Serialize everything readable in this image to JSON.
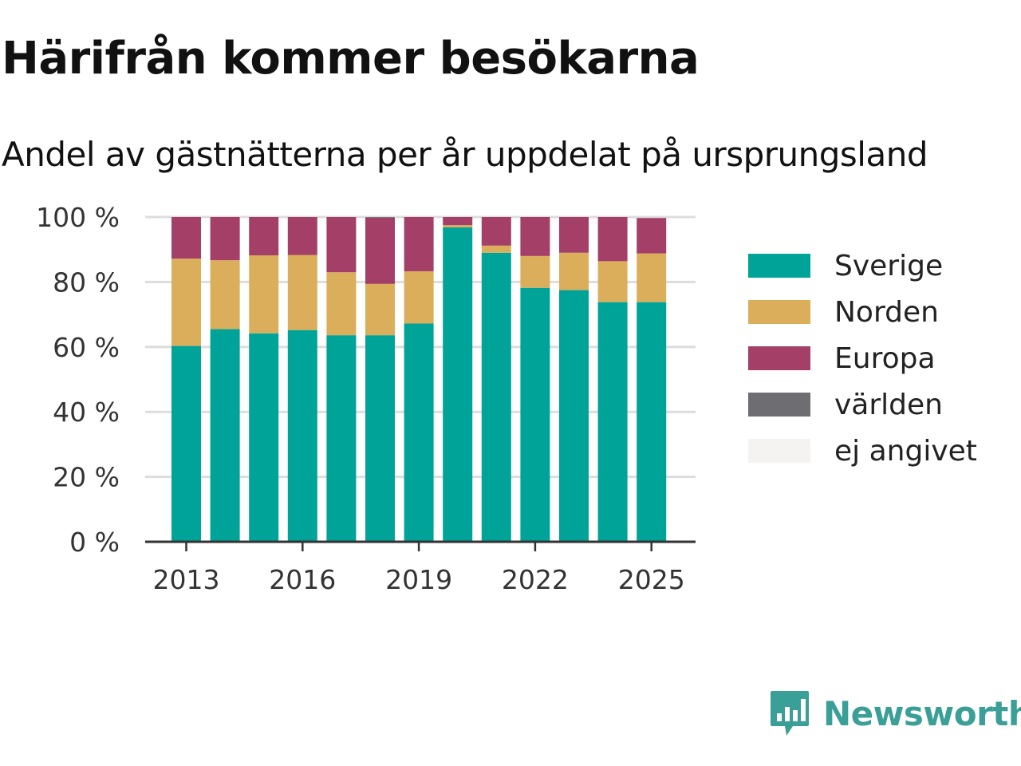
{
  "title": "Härifrån kommer besökarna",
  "subtitle": "Andel av gästnätterna per år uppdelat på ursprungsland",
  "brand": {
    "name": "Newsworthy",
    "color": "#3a9f97"
  },
  "chart_data": {
    "type": "bar",
    "stacked": true,
    "categories": [
      "2013",
      "2014",
      "2015",
      "2016",
      "2017",
      "2018",
      "2019",
      "2020",
      "2021",
      "2022",
      "2023",
      "2024",
      "2025"
    ],
    "x_tick_labels": [
      "2013",
      "2016",
      "2019",
      "2022",
      "2025"
    ],
    "y_tick_labels": [
      "0 %",
      "20 %",
      "40 %",
      "60 %",
      "80 %",
      "100 %"
    ],
    "ylim": [
      0,
      100
    ],
    "grid": true,
    "legend_position": "right",
    "series": [
      {
        "name": "Sverige",
        "color": "#00a398",
        "values": [
          60.3,
          65.5,
          64.2,
          65.2,
          63.6,
          63.6,
          67.2,
          96.8,
          89.0,
          78.2,
          77.5,
          73.8,
          73.8
        ]
      },
      {
        "name": "Norden",
        "color": "#dbae5c",
        "values": [
          26.9,
          21.2,
          24.0,
          23.1,
          19.4,
          15.8,
          16.1,
          0.7,
          2.2,
          9.8,
          11.5,
          12.6,
          15.0
        ]
      },
      {
        "name": "Europa",
        "color": "#a43f68",
        "values": [
          12.8,
          13.3,
          11.8,
          11.7,
          17.0,
          20.4,
          16.7,
          2.5,
          8.8,
          12.0,
          11.0,
          13.6,
          10.9
        ]
      },
      {
        "name": "världen",
        "color": "#6e6e72",
        "values": [
          0,
          0,
          0,
          0,
          0,
          0.2,
          0,
          0,
          0,
          0,
          0,
          0,
          0
        ]
      },
      {
        "name": "ej angivet",
        "color": "#f4f3f1",
        "values": [
          0,
          0,
          0,
          0,
          0,
          0,
          0,
          0,
          0,
          0,
          0,
          0,
          0
        ]
      }
    ]
  }
}
